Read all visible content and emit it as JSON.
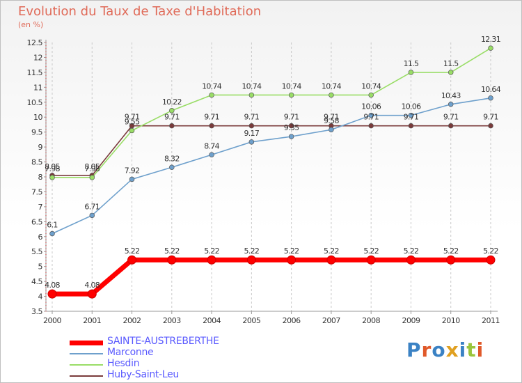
{
  "title": "Evolution du Taux de Taxe d'Habitation",
  "subtitle": "(en %)",
  "logo_text": "Proxiti",
  "chart_data": {
    "type": "line",
    "categories": [
      "2000",
      "2001",
      "2002",
      "2003",
      "2004",
      "2005",
      "2006",
      "2007",
      "2008",
      "2009",
      "2010",
      "2011"
    ],
    "ylim": [
      3.5,
      12.5
    ],
    "yticks": [
      3.5,
      4,
      4.5,
      5,
      5.5,
      6,
      6.5,
      7,
      7.5,
      8,
      8.5,
      9,
      9.5,
      10,
      10.5,
      11,
      11.5,
      12,
      12.5
    ],
    "ytick_labels": [
      "3.5",
      "4",
      "4.5",
      "5",
      "5.5",
      "6",
      "6.5",
      "7",
      "7.5",
      "8",
      "8.5",
      "9",
      "9.5",
      "10",
      "10.5",
      "11",
      "11.5",
      "12",
      "12.5"
    ],
    "grid": "vertical",
    "legend_position": "bottom-left",
    "series": [
      {
        "name": "SAINTE-AUSTREBERTHE",
        "color": "#ff0000",
        "values": [
          4.08,
          4.08,
          5.22,
          5.22,
          5.22,
          5.22,
          5.22,
          5.22,
          5.22,
          5.22,
          5.22,
          5.22
        ],
        "labels": [
          "4.08",
          "4.08",
          "5.22",
          "5.22",
          "5.22",
          "5.22",
          "5.22",
          "5.22",
          "5.22",
          "5.22",
          "5.22",
          "5.22"
        ]
      },
      {
        "name": "Marconne",
        "color": "#6ea0cc",
        "values": [
          6.1,
          6.71,
          7.92,
          8.32,
          8.74,
          9.17,
          9.35,
          9.58,
          10.06,
          10.06,
          10.43,
          10.64
        ],
        "labels": [
          "6.1",
          "6.71",
          "7.92",
          "8.32",
          "8.74",
          "9.17",
          "9.35",
          "9.58",
          "10.06",
          "10.06",
          "10.43",
          "10.64"
        ]
      },
      {
        "name": "Hesdin",
        "color": "#99dd66",
        "values": [
          7.98,
          7.98,
          9.55,
          10.22,
          10.74,
          10.74,
          10.74,
          10.74,
          10.74,
          11.5,
          11.5,
          12.31
        ],
        "labels": [
          "7.98",
          "7.98",
          "9.55",
          "10.22",
          "10.74",
          "10.74",
          "10.74",
          "10.74",
          "10.74",
          "11.5",
          "11.5",
          "12.31"
        ]
      },
      {
        "name": "Huby-Saint-Leu",
        "color": "#7a3b3b",
        "values": [
          8.05,
          8.05,
          9.71,
          9.71,
          9.71,
          9.71,
          9.71,
          9.71,
          9.71,
          9.71,
          9.71,
          9.71
        ],
        "labels": [
          "8.05",
          "8.05",
          "9.71",
          "9.71",
          "9.71",
          "9.71",
          "9.71",
          "9.71",
          "9.71",
          "9.71",
          "9.71",
          "9.71"
        ]
      }
    ]
  }
}
